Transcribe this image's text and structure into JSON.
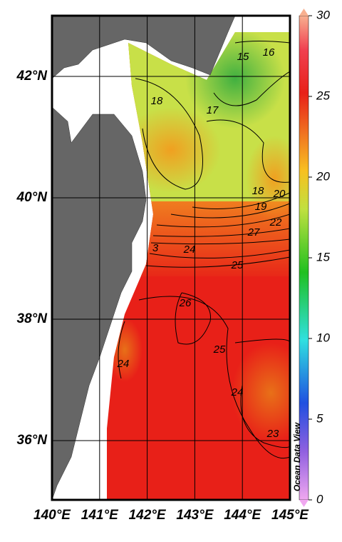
{
  "map": {
    "lon_ticks": [
      {
        "value": 140,
        "label": "140°E"
      },
      {
        "value": 141,
        "label": "141°E"
      },
      {
        "value": 142,
        "label": "142°E"
      },
      {
        "value": 143,
        "label": "143°E"
      },
      {
        "value": 144,
        "label": "144°E"
      },
      {
        "value": 145,
        "label": "145°E"
      }
    ],
    "lat_ticks": [
      {
        "value": 36,
        "label": "36°N"
      },
      {
        "value": 38,
        "label": "38°N"
      },
      {
        "value": 40,
        "label": "40°N"
      },
      {
        "value": 42,
        "label": "42°N"
      }
    ],
    "colorbar": {
      "lim": [
        0,
        30
      ],
      "ticks": [
        0,
        5,
        10,
        15,
        20,
        25,
        30
      ]
    },
    "contour_labels": [
      "15",
      "16",
      "17",
      "18",
      "18",
      "19",
      "20",
      "22",
      "27",
      "3",
      "24",
      "25",
      "26",
      "25",
      "24",
      "24",
      "23"
    ],
    "watermark": "Ocean Data View"
  }
}
